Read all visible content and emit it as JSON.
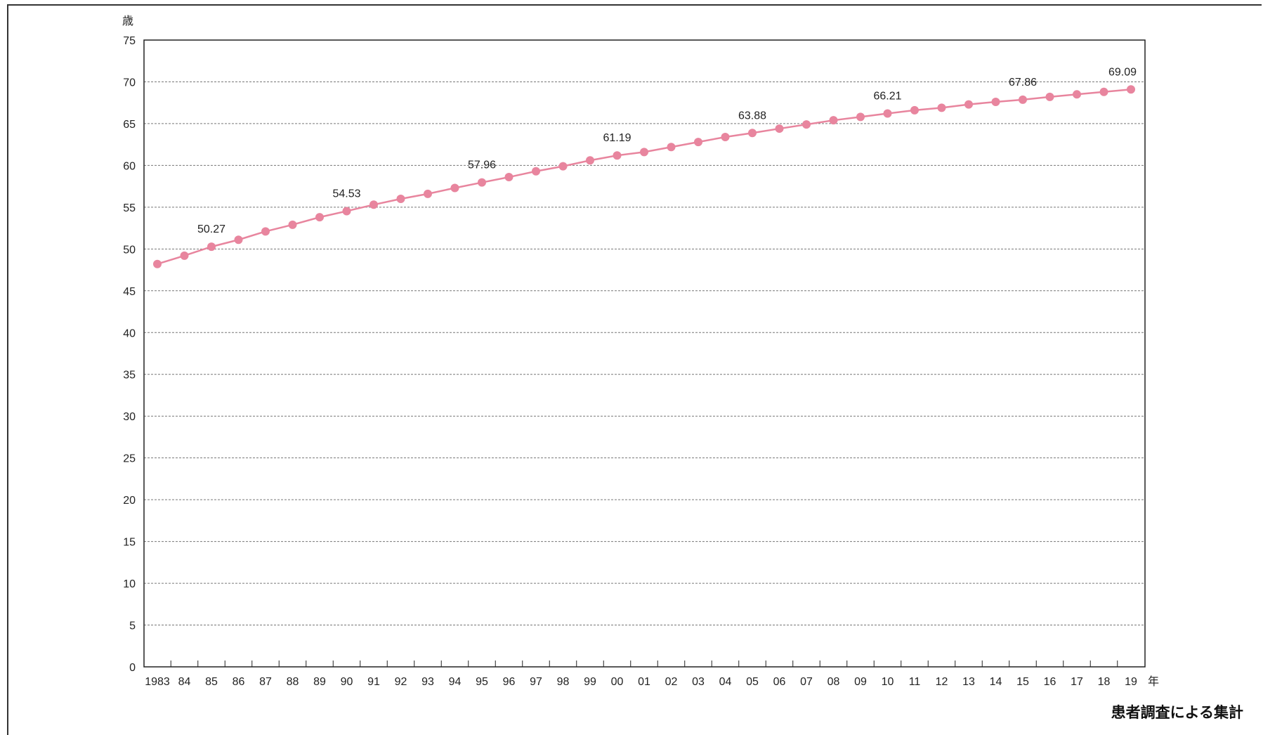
{
  "chart_data": {
    "type": "line",
    "ylabel": "歳",
    "xlabel": "年",
    "ylim": [
      0,
      75
    ],
    "yticks": [
      0,
      5,
      10,
      15,
      20,
      25,
      30,
      35,
      40,
      45,
      50,
      55,
      60,
      65,
      70,
      75
    ],
    "grid": true,
    "categories": [
      "1983",
      "84",
      "85",
      "86",
      "87",
      "88",
      "89",
      "90",
      "91",
      "92",
      "93",
      "94",
      "95",
      "96",
      "97",
      "98",
      "99",
      "00",
      "01",
      "02",
      "03",
      "04",
      "05",
      "06",
      "07",
      "08",
      "09",
      "10",
      "11",
      "12",
      "13",
      "14",
      "15",
      "16",
      "17",
      "18",
      "19"
    ],
    "series": [
      {
        "color": "#e8859e",
        "values": [
          48.2,
          49.2,
          50.27,
          51.1,
          52.1,
          52.9,
          53.8,
          54.53,
          55.3,
          56.0,
          56.6,
          57.3,
          57.96,
          58.6,
          59.3,
          59.9,
          60.6,
          61.19,
          61.6,
          62.2,
          62.8,
          63.4,
          63.88,
          64.4,
          64.9,
          65.4,
          65.8,
          66.21,
          66.6,
          66.9,
          67.3,
          67.6,
          67.86,
          68.2,
          68.5,
          68.8,
          69.09
        ]
      }
    ],
    "annotations": [
      {
        "index": 2,
        "text": "50.27"
      },
      {
        "index": 7,
        "text": "54.53"
      },
      {
        "index": 12,
        "text": "57.96"
      },
      {
        "index": 17,
        "text": "61.19"
      },
      {
        "index": 22,
        "text": "63.88"
      },
      {
        "index": 27,
        "text": "66.21"
      },
      {
        "index": 32,
        "text": "67.86"
      },
      {
        "index": 36,
        "text": "69.09"
      }
    ]
  },
  "source_note": "患者調査による集計"
}
